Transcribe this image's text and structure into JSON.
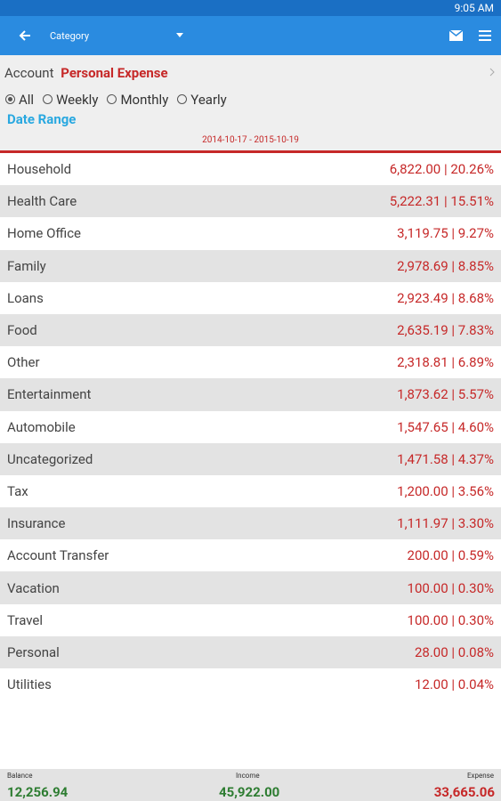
{
  "status_bar": {
    "time": "9:05 AM"
  },
  "toolbar": {
    "title": "Category"
  },
  "account": {
    "label": "Account",
    "name": "Personal Expense"
  },
  "periods": {
    "options": [
      "All",
      "Weekly",
      "Monthly",
      "Yearly"
    ],
    "selected": 0
  },
  "date_range": {
    "label": "Date Range",
    "value": "2014-10-17 - 2015-10-19"
  },
  "rows": [
    [
      "Household",
      "6,822.00 | 20.26%"
    ],
    [
      "Health Care",
      "5,222.31 | 15.51%"
    ],
    [
      "Home Office",
      "3,119.75 | 9.27%"
    ],
    [
      "Family",
      "2,978.69 | 8.85%"
    ],
    [
      "Loans",
      "2,923.49 | 8.68%"
    ],
    [
      "Food",
      "2,635.19 | 7.83%"
    ],
    [
      "Other",
      "2,318.81 | 6.89%"
    ],
    [
      "Entertainment",
      "1,873.62 | 5.57%"
    ],
    [
      "Automobile",
      "1,547.65 | 4.60%"
    ],
    [
      "Uncategorized",
      "1,471.58 | 4.37%"
    ],
    [
      "Tax",
      "1,200.00 | 3.56%"
    ],
    [
      "Insurance",
      "1,111.97 | 3.30%"
    ],
    [
      "Account Transfer",
      "200.00 | 0.59%"
    ],
    [
      "Vacation",
      "100.00 | 0.30%"
    ],
    [
      "Travel",
      "100.00 | 0.30%"
    ],
    [
      "Personal",
      "28.00 | 0.08%"
    ],
    [
      "Utilities",
      "12.00 | 0.04%"
    ]
  ],
  "footer": {
    "balance_label": "Balance",
    "balance": "12,256.94",
    "income_label": "Income",
    "income": "45,922.00",
    "expense_label": "Expense",
    "expense": "33,665.06"
  }
}
